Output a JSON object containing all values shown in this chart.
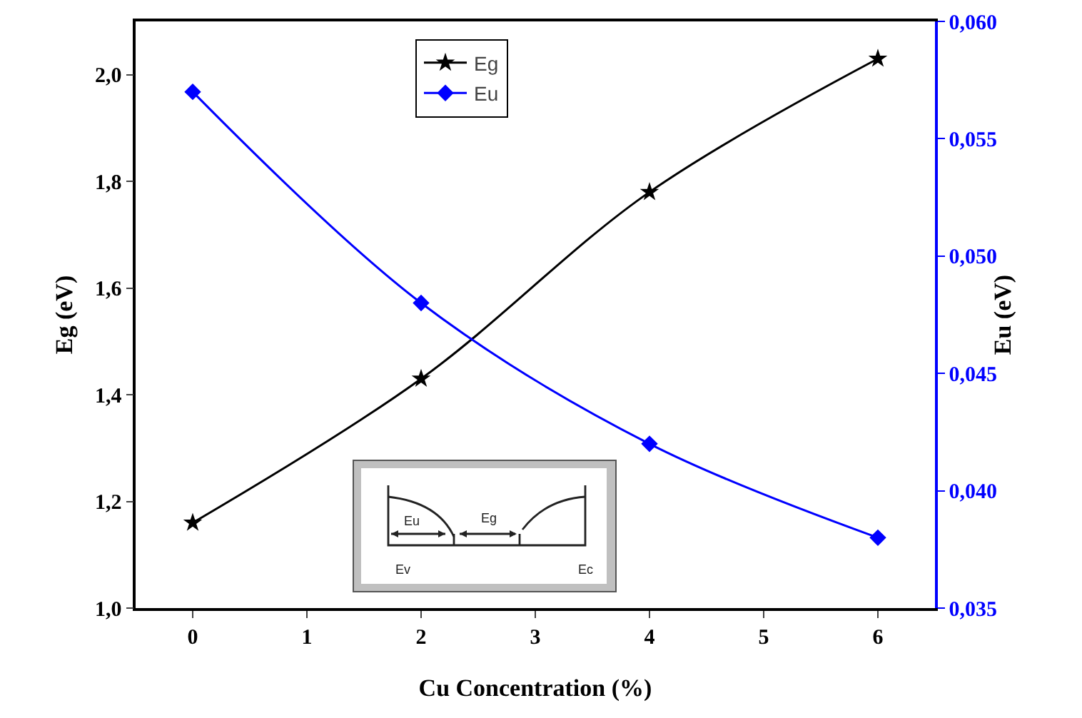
{
  "chart_data": {
    "type": "line",
    "xlabel": "Cu Concentration (%)",
    "ylabel": "Eg (eV)",
    "y2label": "Eu (eV)",
    "x": [
      0,
      2,
      4,
      6
    ],
    "series": [
      {
        "name": "Eg",
        "color": "#000000",
        "marker": "star",
        "values": [
          1.16,
          1.43,
          1.78,
          2.03
        ]
      },
      {
        "name": "Eu",
        "color": "#0000ff",
        "marker": "diamond",
        "axis": "y2",
        "values": [
          0.057,
          0.048,
          0.042,
          0.038
        ]
      }
    ],
    "xlim": [
      -0.5,
      6.5
    ],
    "xticks": [
      0,
      1,
      2,
      3,
      4,
      5,
      6
    ],
    "ylim": [
      1.0,
      2.1
    ],
    "yticks": [
      {
        "value": 1.0,
        "label": "1,0"
      },
      {
        "value": 1.2,
        "label": "1,2"
      },
      {
        "value": 1.4,
        "label": "1,4"
      },
      {
        "value": 1.6,
        "label": "1,6"
      },
      {
        "value": 1.8,
        "label": "1,8"
      },
      {
        "value": 2.0,
        "label": "2,0"
      }
    ],
    "y2lim": [
      0.035,
      0.06
    ],
    "y2ticks": [
      {
        "value": 0.035,
        "label": "0,035"
      },
      {
        "value": 0.04,
        "label": "0,040"
      },
      {
        "value": 0.045,
        "label": "0,045"
      },
      {
        "value": 0.05,
        "label": "0,050"
      },
      {
        "value": 0.055,
        "label": "0,055"
      },
      {
        "value": 0.06,
        "label": "0,060"
      }
    ],
    "annotations": [
      "Eu",
      "Eg",
      "Ev",
      "Ec"
    ],
    "legend": "top",
    "grid": false,
    "line_style": "solid"
  }
}
